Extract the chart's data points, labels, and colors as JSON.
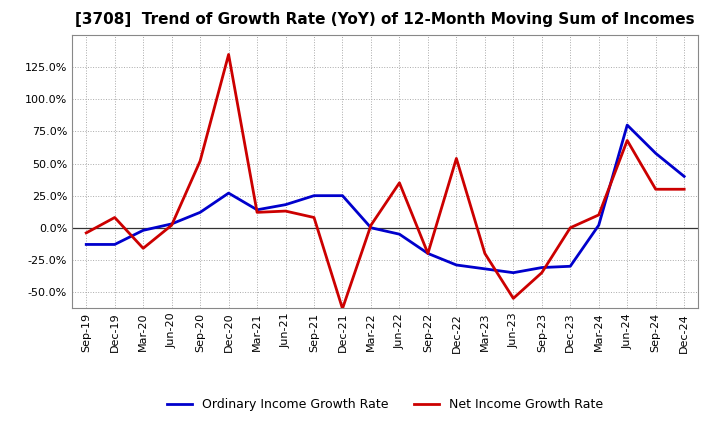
{
  "title": "[3708]  Trend of Growth Rate (YoY) of 12-Month Moving Sum of Incomes",
  "x_labels": [
    "Sep-19",
    "Dec-19",
    "Mar-20",
    "Jun-20",
    "Sep-20",
    "Dec-20",
    "Mar-21",
    "Jun-21",
    "Sep-21",
    "Dec-21",
    "Mar-22",
    "Jun-22",
    "Sep-22",
    "Dec-22",
    "Mar-23",
    "Jun-23",
    "Sep-23",
    "Dec-23",
    "Mar-24",
    "Jun-24",
    "Sep-24",
    "Dec-24"
  ],
  "ordinary_income": [
    -0.13,
    -0.13,
    -0.02,
    0.03,
    0.12,
    0.27,
    0.14,
    0.18,
    0.25,
    0.25,
    0.0,
    -0.05,
    -0.2,
    -0.29,
    -0.32,
    -0.35,
    -0.31,
    -0.3,
    0.02,
    0.8,
    0.58,
    0.4
  ],
  "net_income": [
    -0.04,
    0.08,
    -0.16,
    0.02,
    0.52,
    1.35,
    0.12,
    0.13,
    0.08,
    -0.63,
    0.02,
    0.35,
    -0.2,
    0.54,
    -0.2,
    -0.55,
    -0.35,
    0.0,
    0.1,
    0.68,
    0.3,
    0.3
  ],
  "ordinary_color": "#0000cc",
  "net_color": "#cc0000",
  "ylim_min": -0.625,
  "ylim_max": 1.5,
  "yticks": [
    -0.5,
    -0.25,
    0.0,
    0.25,
    0.5,
    0.75,
    1.0,
    1.25
  ],
  "background_color": "#ffffff",
  "grid_color": "#aaaaaa",
  "legend_ordinary": "Ordinary Income Growth Rate",
  "legend_net": "Net Income Growth Rate",
  "title_fontsize": 11,
  "tick_fontsize": 8,
  "legend_fontsize": 9,
  "linewidth": 2.0
}
